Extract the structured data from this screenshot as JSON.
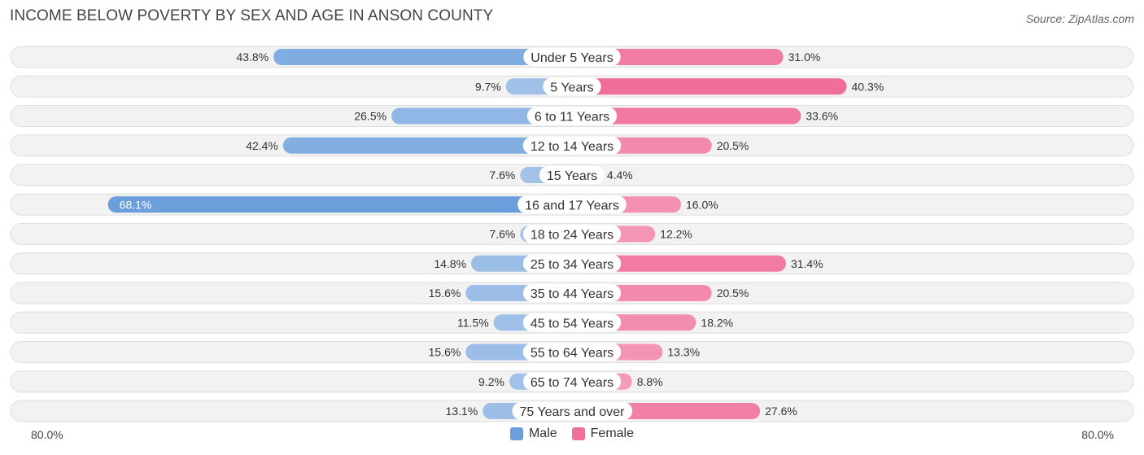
{
  "title": "INCOME BELOW POVERTY BY SEX AND AGE IN ANSON COUNTY",
  "source": "Source: ZipAtlas.com",
  "colors": {
    "male_dark": "#6a9fdc",
    "male_light": "#a9c6ea",
    "female_dark": "#f06f99",
    "female_light": "#f6a6c0"
  },
  "legend": {
    "male": "Male",
    "female": "Female"
  },
  "axis": {
    "left_label": "80.0%",
    "right_label": "80.0%"
  },
  "chart_data": {
    "type": "bar",
    "orientation": "horizontal-diverging",
    "title": "INCOME BELOW POVERTY BY SEX AND AGE IN ANSON COUNTY",
    "categories": [
      "Under 5 Years",
      "5 Years",
      "6 to 11 Years",
      "12 to 14 Years",
      "15 Years",
      "16 and 17 Years",
      "18 to 24 Years",
      "25 to 34 Years",
      "35 to 44 Years",
      "45 to 54 Years",
      "55 to 64 Years",
      "65 to 74 Years",
      "75 Years and over"
    ],
    "series": [
      {
        "name": "Male",
        "values": [
          43.8,
          9.7,
          26.5,
          42.4,
          7.6,
          68.1,
          7.6,
          14.8,
          15.6,
          11.5,
          15.6,
          9.2,
          13.1
        ],
        "labels": [
          "43.8%",
          "9.7%",
          "26.5%",
          "42.4%",
          "7.6%",
          "68.1%",
          "7.6%",
          "14.8%",
          "15.6%",
          "11.5%",
          "15.6%",
          "9.2%",
          "13.1%"
        ]
      },
      {
        "name": "Female",
        "values": [
          31.0,
          40.3,
          33.6,
          20.5,
          4.4,
          16.0,
          12.2,
          31.4,
          20.5,
          18.2,
          13.3,
          8.8,
          27.6
        ],
        "labels": [
          "31.0%",
          "40.3%",
          "33.6%",
          "20.5%",
          "4.4%",
          "16.0%",
          "12.2%",
          "31.4%",
          "20.5%",
          "18.2%",
          "13.3%",
          "8.8%",
          "27.6%"
        ]
      }
    ],
    "xlim": [
      -80,
      80
    ],
    "xlabel": "",
    "ylabel": ""
  }
}
